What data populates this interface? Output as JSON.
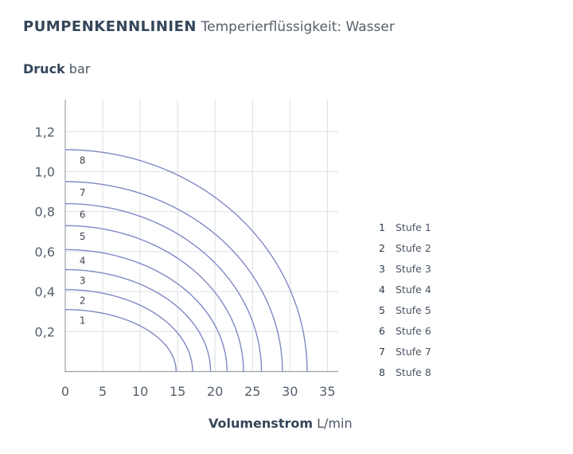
{
  "heading": {
    "title": "PUMPENKENNLINIEN",
    "subtitle": "Temperierflüssigkeit: Wasser"
  },
  "y_axis": {
    "label": "Druck",
    "unit": "bar"
  },
  "x_axis": {
    "label": "Volumenstrom",
    "unit": "L/min"
  },
  "legend": [
    {
      "num": "1",
      "label": "Stufe 1"
    },
    {
      "num": "2",
      "label": "Stufe 2"
    },
    {
      "num": "3",
      "label": "Stufe 3"
    },
    {
      "num": "4",
      "label": "Stufe 4"
    },
    {
      "num": "5",
      "label": "Stufe 5"
    },
    {
      "num": "6",
      "label": "Stufe 6"
    },
    {
      "num": "7",
      "label": "Stufe 7"
    },
    {
      "num": "8",
      "label": "Stufe 8"
    }
  ],
  "colors": {
    "curve": "#8088c6",
    "grid": "#dcdfe3",
    "axis": "#9aa2ab"
  },
  "chart_data": {
    "type": "line",
    "title": "PUMPENKENNLINIEN",
    "subtitle": "Temperierflüssigkeit: Wasser",
    "xlabel": "Volumenstrom L/min",
    "ylabel": "Druck bar",
    "xlim": [
      0,
      36
    ],
    "ylim": [
      0,
      1.35
    ],
    "x_ticks": [
      0,
      5,
      10,
      15,
      20,
      25,
      30,
      35
    ],
    "x_tick_labels": [
      "0",
      "5",
      "10",
      "15",
      "20",
      "25",
      "30",
      "35"
    ],
    "y_ticks": [
      0.2,
      0.4,
      0.6,
      0.8,
      1.0,
      1.2
    ],
    "y_tick_labels": [
      "0,2",
      "0,4",
      "0,6",
      "0,8",
      "1,0",
      "1,2"
    ],
    "grid": true,
    "legend_position": "right",
    "series": [
      {
        "name": "1",
        "shutoff_pressure": 0.31,
        "max_flow": 14.8
      },
      {
        "name": "2",
        "shutoff_pressure": 0.41,
        "max_flow": 17.0
      },
      {
        "name": "3",
        "shutoff_pressure": 0.51,
        "max_flow": 19.4
      },
      {
        "name": "4",
        "shutoff_pressure": 0.61,
        "max_flow": 21.6
      },
      {
        "name": "5",
        "shutoff_pressure": 0.73,
        "max_flow": 23.8
      },
      {
        "name": "6",
        "shutoff_pressure": 0.84,
        "max_flow": 26.2
      },
      {
        "name": "7",
        "shutoff_pressure": 0.95,
        "max_flow": 29.0
      },
      {
        "name": "8",
        "shutoff_pressure": 1.11,
        "max_flow": 32.3
      }
    ]
  }
}
